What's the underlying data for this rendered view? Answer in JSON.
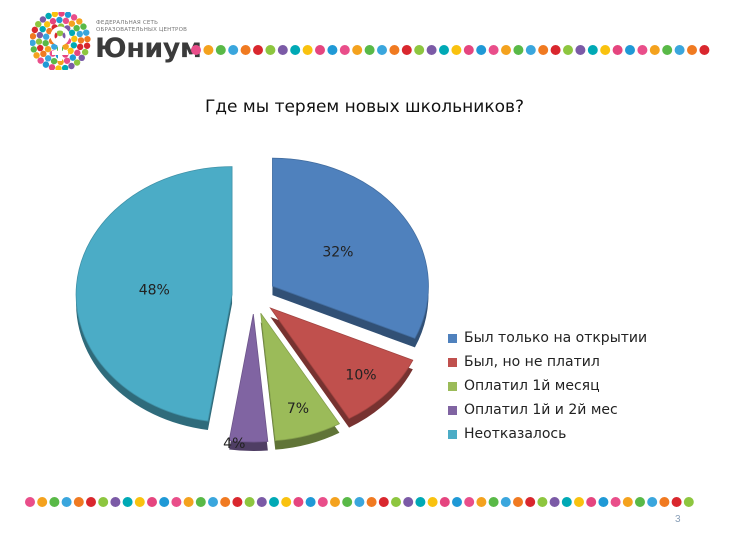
{
  "brand": {
    "small_line_1": "ФЕДЕРАЛЬНАЯ СЕТЬ",
    "small_line_2": "ОБРАЗОВАТЕЛЬНЫХ ЦЕНТРОВ",
    "name": "Юниум"
  },
  "dot_colors": [
    "#e94e8a",
    "#f4a21e",
    "#59b947",
    "#3aa6dd",
    "#f07a21",
    "#d9272e",
    "#8dc63f",
    "#7b5aa6",
    "#00a9b5",
    "#f9c20f",
    "#e5457f",
    "#1f99d6"
  ],
  "chart_data": {
    "type": "pie",
    "title": "Где мы теряем новых школьников?",
    "legend_position": "right",
    "slices": [
      {
        "label": "Был только на открытии",
        "value": 32,
        "display": "32%",
        "color": "#4f81bd"
      },
      {
        "label": "Был, но не платил",
        "value": 10,
        "display": "10%",
        "color": "#c0504d"
      },
      {
        "label": "Оплатил 1й месяц",
        "value": 7,
        "display": "7%",
        "color": "#9bbb59"
      },
      {
        "label": "Оплатил 1й и 2й мес",
        "value": 4,
        "display": "4%",
        "color": "#8064a2"
      },
      {
        "label": "Неотказалось",
        "value": 48,
        "display": "48%",
        "color": "#4bacc6"
      }
    ]
  },
  "page_number": "3"
}
